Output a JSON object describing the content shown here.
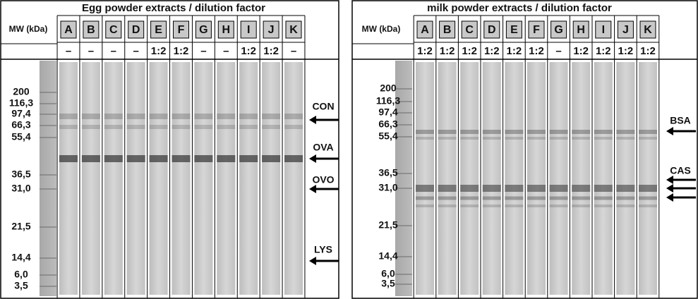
{
  "left_panel": {
    "title": "Egg powder extracts / dilution factor",
    "mw_label": "MW (kDa)",
    "lanes": [
      {
        "letter": "A",
        "dilution": "–"
      },
      {
        "letter": "B",
        "dilution": "–"
      },
      {
        "letter": "C",
        "dilution": "–"
      },
      {
        "letter": "D",
        "dilution": "–"
      },
      {
        "letter": "E",
        "dilution": "1:2"
      },
      {
        "letter": "F",
        "dilution": "1:2"
      },
      {
        "letter": "G",
        "dilution": "–"
      },
      {
        "letter": "H",
        "dilution": "–"
      },
      {
        "letter": "I",
        "dilution": "1:2"
      },
      {
        "letter": "J",
        "dilution": "1:2"
      },
      {
        "letter": "K",
        "dilution": "–"
      }
    ],
    "markers": [
      "200",
      "116,3",
      "97,4",
      "66,3",
      "55,4",
      "36,5",
      "31,0",
      "21,5",
      "14,4",
      "6,0",
      "3,5"
    ],
    "proteins": [
      "CON",
      "OVA",
      "OVO",
      "LYS"
    ]
  },
  "right_panel": {
    "title": "milk powder extracts / dilution factor",
    "mw_label": "MW (kDa)",
    "lanes": [
      {
        "letter": "A",
        "dilution": "1:2"
      },
      {
        "letter": "B",
        "dilution": "1:2"
      },
      {
        "letter": "C",
        "dilution": "1:2"
      },
      {
        "letter": "D",
        "dilution": "1:2"
      },
      {
        "letter": "E",
        "dilution": "1:2"
      },
      {
        "letter": "F",
        "dilution": "1:2"
      },
      {
        "letter": "G",
        "dilution": "–"
      },
      {
        "letter": "H",
        "dilution": "1:2"
      },
      {
        "letter": "I",
        "dilution": "1:2"
      },
      {
        "letter": "J",
        "dilution": "1:2"
      },
      {
        "letter": "K",
        "dilution": "1:2"
      }
    ],
    "markers": [
      "200",
      "116,3",
      "97,4",
      "66,3",
      "55,4",
      "36,5",
      "31,0",
      "21,5",
      "14,4",
      "6,0",
      "3,5"
    ],
    "proteins": [
      "BSA",
      "CAS"
    ]
  }
}
